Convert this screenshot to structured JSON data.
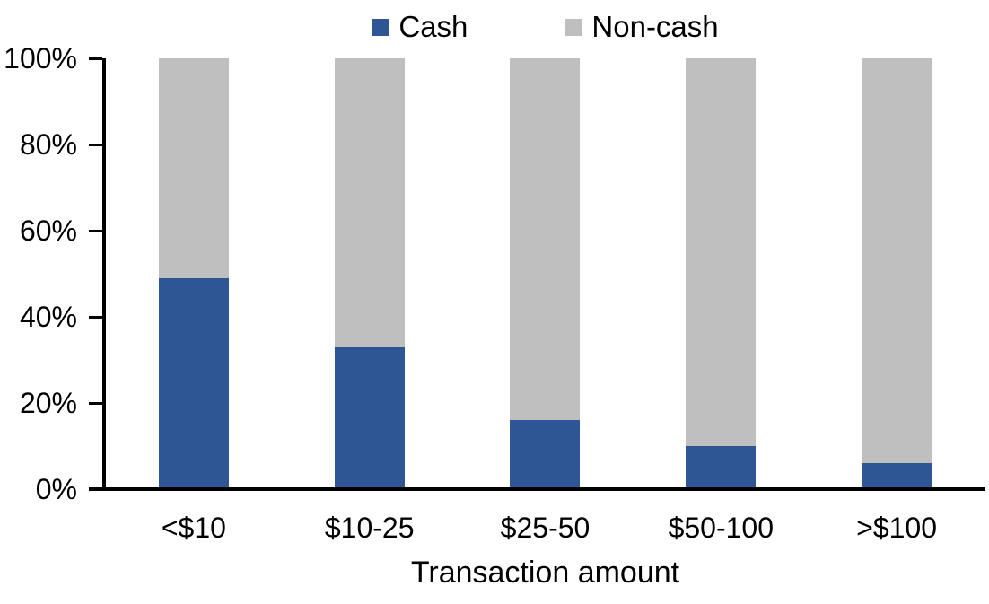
{
  "chart_data": {
    "type": "bar",
    "stacked": true,
    "orientation": "vertical",
    "title": "",
    "xlabel": "Transaction amount",
    "ylabel": "",
    "categories": [
      "<$10",
      "$10-25",
      "$25-50",
      "$50-100",
      ">$100"
    ],
    "series": [
      {
        "name": "Cash",
        "color": "#2F5694",
        "values": [
          49,
          33,
          16,
          10,
          6
        ]
      },
      {
        "name": "Non-cash",
        "color": "#BFBFBF",
        "values": [
          51,
          67,
          84,
          90,
          94
        ]
      }
    ],
    "value_unit": "%",
    "ylim": [
      0,
      100
    ],
    "y_ticks": [
      {
        "label": "0%",
        "value": 0
      },
      {
        "label": "20%",
        "value": 20
      },
      {
        "label": "40%",
        "value": 40
      },
      {
        "label": "60%",
        "value": 60
      },
      {
        "label": "80%",
        "value": 80
      },
      {
        "label": "100%",
        "value": 100
      }
    ],
    "grid": false,
    "legend_position": "top-center"
  },
  "colors": {
    "background": "#FFFFFF",
    "axis": "#000000",
    "text": "#000000",
    "cash": "#2F5694",
    "non_cash": "#BFBFBF"
  }
}
